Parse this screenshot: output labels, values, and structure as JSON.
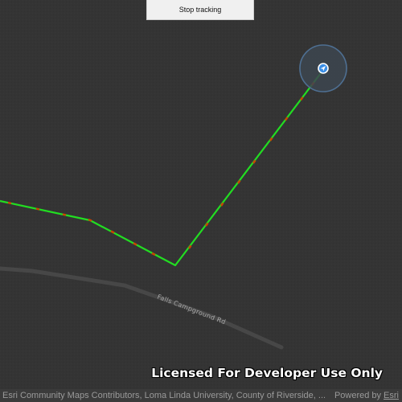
{
  "toolbar": {
    "stop_tracking_label": "Stop tracking"
  },
  "map": {
    "road_label": "Falls Campground Rd",
    "watermark": "Licensed For Developer Use Only",
    "colors": {
      "background": "#343434",
      "road": "#444444",
      "track_line": "#22dd22",
      "track_marker": "#cc4400",
      "location_halo": "#4a6a8a",
      "location_dot": "#3a8ee6"
    },
    "location_icon": "navigation-arrow-icon"
  },
  "attribution": {
    "text": "Esri Community Maps Contributors, Loma Linda University, County of Riverside, ...",
    "powered_by_label": "Powered by",
    "esri_label": "Esri"
  }
}
